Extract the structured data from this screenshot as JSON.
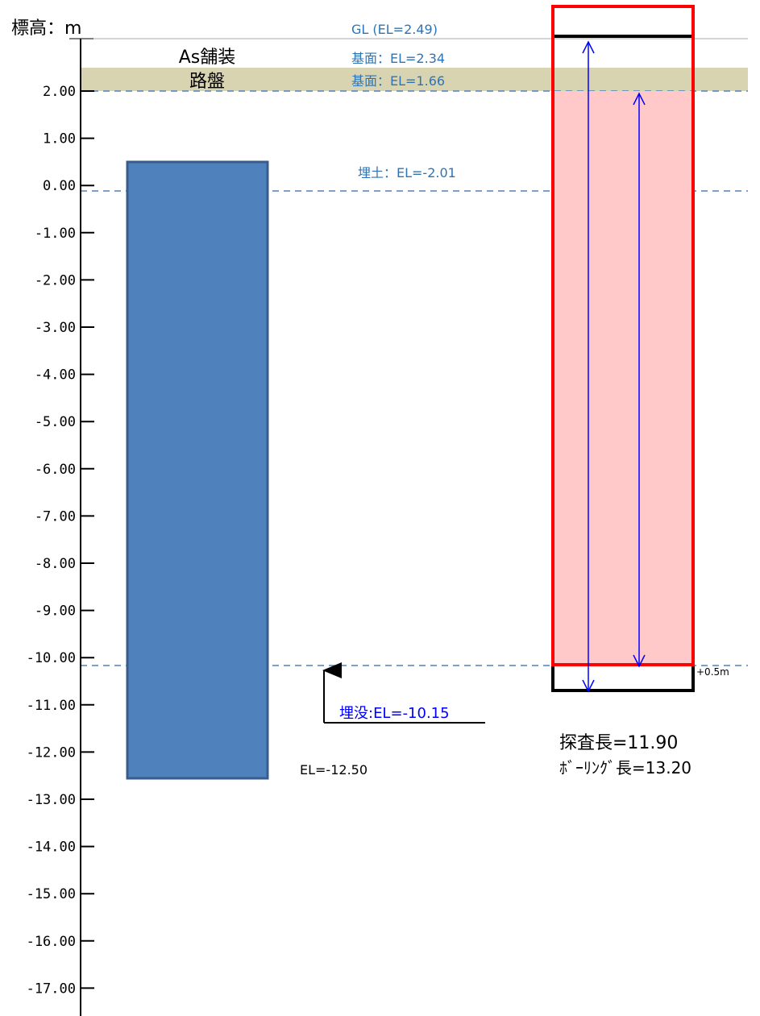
{
  "axis": {
    "label": "標高：m",
    "ticks": [
      "2.00",
      "1.00",
      "0.00",
      "-1.00",
      "-2.00",
      "-3.00",
      "-4.00",
      "-5.00",
      "-6.00",
      "-7.00",
      "-8.00",
      "-9.00",
      "-10.00",
      "-11.00",
      "-12.00",
      "-13.00",
      "-14.00",
      "-15.00",
      "-16.00",
      "-17.00"
    ]
  },
  "levels": {
    "gl": "GL (EL=2.49)",
    "as_base": "基面：EL=2.34",
    "roadbed_base": "基面：EL=1.66",
    "fill": "埋土：EL=-2.01",
    "buried": "埋没:EL=-10.15"
  },
  "layers": {
    "asphalt": "As舗装",
    "roadbed": "路盤"
  },
  "pile": {
    "bottom_label": "EL=-12.50"
  },
  "survey": {
    "margin_label": "+0.5m",
    "survey_length": "探査長=11.90",
    "boring_length": "ﾎﾞｰﾘﾝｸﾞ長=13.20"
  },
  "colors": {
    "pile": "#4f81bd",
    "pile_border": "#385d8a",
    "layer_band": "#d8d3b0",
    "survey_fill": "#ffc9c9",
    "survey_border": "#ff0000",
    "dashed_line": "#4f81bd",
    "level_text": "#2e74b5",
    "arrow": "#0000ff"
  }
}
